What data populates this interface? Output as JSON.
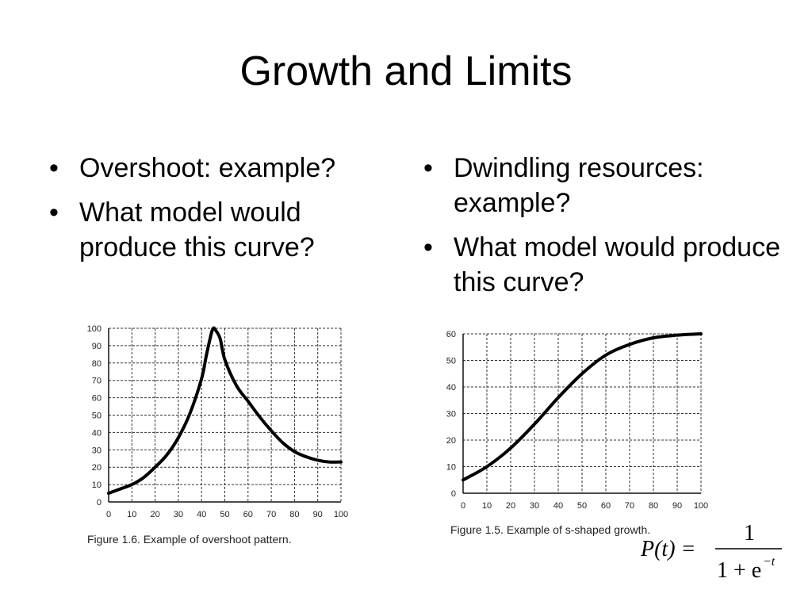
{
  "slide": {
    "title": "Growth and Limits",
    "left_bullets": [
      "Overshoot: example?",
      "What model would produce this curve?"
    ],
    "right_bullets": [
      "Dwindling resources: example?",
      "What model would produce this curve?"
    ]
  },
  "chart_data": [
    {
      "type": "line",
      "title": "",
      "caption": "Figure 1.6. Example of overshoot pattern.",
      "xlim": [
        0,
        100
      ],
      "ylim": [
        0,
        100
      ],
      "x_ticks": [
        0,
        10,
        20,
        30,
        40,
        50,
        60,
        70,
        80,
        90,
        100
      ],
      "y_ticks": [
        0,
        10,
        20,
        30,
        40,
        50,
        60,
        70,
        80,
        90,
        100
      ],
      "grid": true,
      "series": [
        {
          "x": [
            0,
            5,
            10,
            15,
            20,
            25,
            30,
            35,
            40,
            42,
            44,
            45,
            46,
            48,
            50,
            55,
            60,
            65,
            70,
            75,
            80,
            85,
            90,
            95,
            100
          ],
          "y": [
            5,
            7.5,
            10,
            14,
            20,
            27,
            37,
            51,
            71,
            84,
            96,
            100,
            99,
            94,
            82,
            67,
            58,
            49,
            41,
            34,
            29,
            26,
            24,
            23,
            23
          ]
        }
      ]
    },
    {
      "type": "line",
      "title": "",
      "caption": "Figure 1.5. Example of s-shaped growth.",
      "xlim": [
        0,
        100
      ],
      "ylim": [
        0,
        60
      ],
      "x_ticks": [
        0,
        10,
        20,
        30,
        40,
        50,
        60,
        70,
        80,
        90,
        100
      ],
      "y_ticks": [
        0,
        10,
        20,
        30,
        40,
        50,
        60
      ],
      "grid": true,
      "series": [
        {
          "x": [
            0,
            10,
            20,
            30,
            40,
            50,
            60,
            70,
            80,
            90,
            100
          ],
          "y": [
            5,
            10,
            17,
            26,
            36,
            45,
            52,
            56,
            58.5,
            59.5,
            60
          ]
        }
      ]
    }
  ],
  "equation": {
    "lhs": "P(t) =",
    "numerator": "1",
    "denominator_base": "1 + e",
    "denominator_exponent": "−t"
  }
}
